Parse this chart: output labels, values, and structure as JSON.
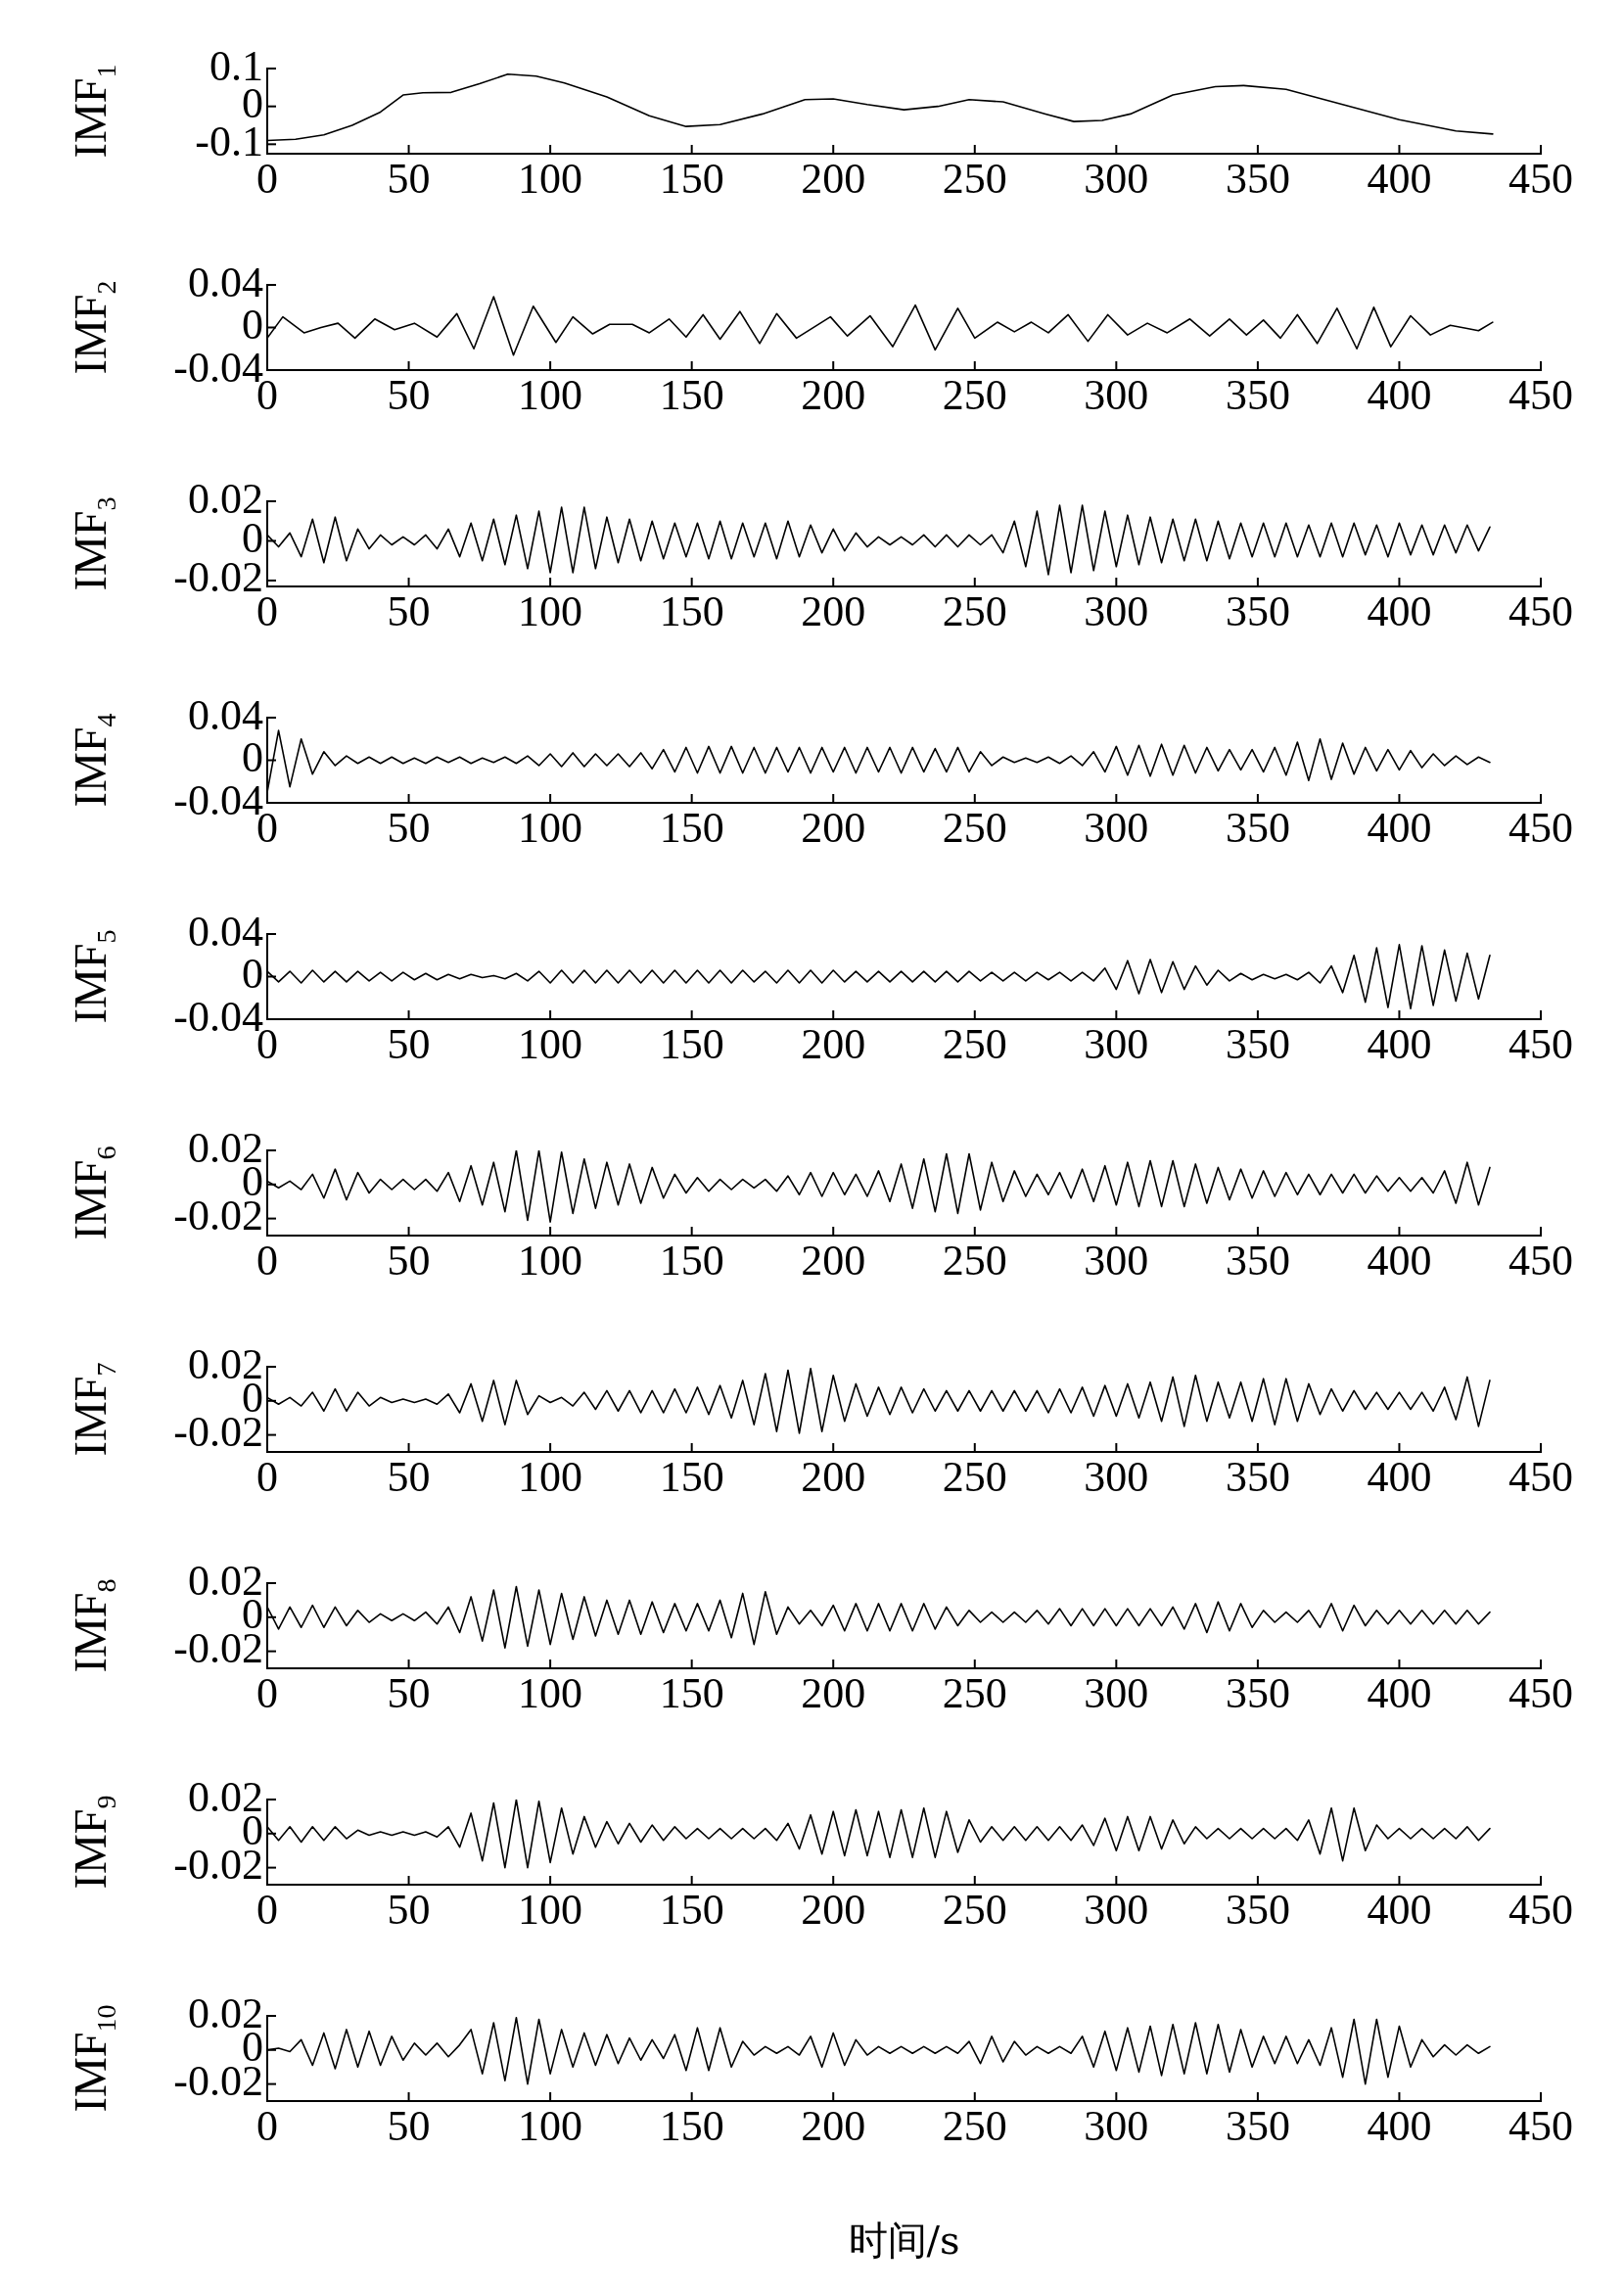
{
  "chart_data": [
    {
      "type": "line",
      "ylabel": "IMF$_{1}$",
      "color": "#000000",
      "marker": "none",
      "line_style": "solid",
      "xlim": [
        0,
        450
      ],
      "xticks": [
        0,
        50,
        100,
        150,
        200,
        250,
        300,
        350,
        400,
        450
      ],
      "ylim": [
        -0.125,
        0.1
      ],
      "yticks": [
        -0.1,
        0,
        0.1
      ],
      "x": [
        0,
        10,
        20,
        30,
        40,
        48,
        55,
        65,
        75,
        85,
        95,
        105,
        120,
        135,
        148,
        160,
        175,
        190,
        200,
        212,
        225,
        237,
        248,
        260,
        275,
        285,
        295,
        305,
        320,
        335,
        345,
        360,
        380,
        400,
        420,
        433
      ],
      "values": [
        -0.09,
        -0.087,
        -0.075,
        -0.05,
        -0.015,
        0.03,
        0.036,
        0.037,
        0.06,
        0.085,
        0.08,
        0.062,
        0.025,
        -0.025,
        -0.053,
        -0.048,
        -0.02,
        0.018,
        0.02,
        0.005,
        -0.009,
        0.0,
        0.018,
        0.012,
        -0.02,
        -0.04,
        -0.037,
        -0.02,
        0.03,
        0.052,
        0.055,
        0.045,
        0.005,
        -0.035,
        -0.065,
        -0.073
      ]
    },
    {
      "type": "line",
      "ylabel": "IMF$_{2}$",
      "color": "#000000",
      "marker": "none",
      "line_style": "solid",
      "xlim": [
        0,
        450
      ],
      "xticks": [
        0,
        50,
        100,
        150,
        200,
        250,
        300,
        350,
        400,
        450
      ],
      "ylim": [
        -0.04,
        0.04
      ],
      "yticks": [
        -0.04,
        0,
        0.04
      ],
      "x": [
        0,
        5.5,
        13,
        19,
        25,
        31,
        38,
        45,
        52,
        60,
        67,
        73,
        80,
        87,
        94,
        102,
        108,
        115,
        121,
        129,
        135,
        142,
        148,
        154,
        160,
        167,
        174,
        180,
        187,
        199,
        205,
        213,
        221,
        229,
        236,
        244,
        250,
        258,
        264,
        270,
        276,
        283,
        290,
        297,
        304,
        311,
        318,
        326,
        333,
        340,
        346,
        352,
        358,
        364,
        371,
        378,
        385,
        391,
        397,
        404,
        411,
        418,
        424,
        428,
        433
      ],
      "values": [
        -0.01,
        0.01,
        -0.005,
        0.0,
        0.004,
        -0.01,
        0.008,
        -0.002,
        0.004,
        -0.009,
        0.013,
        -0.02,
        0.029,
        -0.026,
        0.02,
        -0.014,
        0.01,
        -0.006,
        0.003,
        0.003,
        -0.005,
        0.008,
        -0.009,
        0.012,
        -0.011,
        0.015,
        -0.015,
        0.013,
        -0.01,
        0.01,
        -0.008,
        0.011,
        -0.018,
        0.021,
        -0.021,
        0.018,
        -0.01,
        0.005,
        -0.004,
        0.005,
        -0.005,
        0.012,
        -0.013,
        0.012,
        -0.007,
        0.004,
        -0.005,
        0.008,
        -0.008,
        0.008,
        -0.007,
        0.007,
        -0.01,
        0.012,
        -0.015,
        0.018,
        -0.02,
        0.019,
        -0.018,
        0.011,
        -0.007,
        0.002,
        -0.001,
        -0.003,
        0.005
      ]
    },
    {
      "type": "line",
      "ylabel": "IMF$_{3}$",
      "color": "#000000",
      "marker": "none",
      "line_style": "solid",
      "xlim": [
        0,
        450
      ],
      "xticks": [
        0,
        50,
        100,
        150,
        200,
        250,
        300,
        350,
        400,
        450
      ],
      "ylim": [
        -0.023,
        0.02
      ],
      "yticks": [
        -0.02,
        0,
        0.02
      ],
      "x": [
        0,
        4,
        8,
        12,
        16,
        20,
        24,
        28,
        32,
        36,
        40,
        44,
        48,
        52,
        56,
        60,
        64,
        68,
        72,
        76,
        80,
        84,
        88,
        92,
        96,
        100,
        104,
        108,
        112,
        116,
        120,
        124,
        128,
        132,
        136,
        140,
        144,
        148,
        152,
        156,
        160,
        164,
        168,
        172,
        176,
        180,
        184,
        188,
        192,
        196,
        200,
        204,
        208,
        212,
        216,
        220,
        224,
        228,
        232,
        236,
        240,
        244,
        248,
        252,
        256,
        260,
        264,
        268,
        272,
        276,
        280,
        284,
        288,
        292,
        296,
        300,
        304,
        308,
        312,
        316,
        320,
        324,
        328,
        332,
        336,
        340,
        344,
        348,
        352,
        356,
        360,
        364,
        368,
        372,
        376,
        380,
        384,
        388,
        392,
        396,
        400,
        404,
        408,
        412,
        416,
        420,
        424,
        428,
        432
      ],
      "values": [
        0.003,
        -0.003,
        0.004,
        -0.008,
        0.011,
        -0.011,
        0.012,
        -0.01,
        0.006,
        -0.004,
        0.003,
        -0.002,
        0.002,
        -0.002,
        0.003,
        -0.004,
        0.006,
        -0.008,
        0.009,
        -0.01,
        0.011,
        -0.012,
        0.013,
        -0.014,
        0.015,
        -0.016,
        0.017,
        -0.016,
        0.017,
        -0.014,
        0.012,
        -0.011,
        0.011,
        -0.01,
        0.01,
        -0.009,
        0.009,
        -0.008,
        0.009,
        -0.009,
        0.01,
        -0.009,
        0.009,
        -0.008,
        0.009,
        -0.009,
        0.01,
        -0.008,
        0.008,
        -0.006,
        0.006,
        -0.005,
        0.004,
        -0.003,
        0.002,
        -0.002,
        0.002,
        -0.002,
        0.003,
        -0.003,
        0.003,
        -0.003,
        0.003,
        -0.002,
        0.003,
        -0.006,
        0.01,
        -0.013,
        0.015,
        -0.017,
        0.018,
        -0.016,
        0.018,
        -0.015,
        0.015,
        -0.013,
        0.013,
        -0.012,
        0.012,
        -0.011,
        0.011,
        -0.01,
        0.011,
        -0.01,
        0.01,
        -0.009,
        0.009,
        -0.008,
        0.009,
        -0.008,
        0.009,
        -0.008,
        0.008,
        -0.008,
        0.009,
        -0.008,
        0.009,
        -0.007,
        0.008,
        -0.008,
        0.009,
        -0.007,
        0.008,
        -0.007,
        0.008,
        -0.006,
        0.008,
        -0.005,
        0.007
      ]
    },
    {
      "type": "line",
      "ylabel": "IMF$_{4}$",
      "color": "#000000",
      "marker": "none",
      "line_style": "solid",
      "xlim": [
        0,
        450
      ],
      "xticks": [
        0,
        50,
        100,
        150,
        200,
        250,
        300,
        350,
        400,
        450
      ],
      "ylim": [
        -0.04,
        0.04
      ],
      "yticks": [
        -0.04,
        0,
        0.04
      ],
      "x": [
        0,
        4,
        8,
        12,
        16,
        20,
        24,
        28,
        32,
        36,
        40,
        44,
        48,
        52,
        56,
        60,
        64,
        68,
        72,
        76,
        80,
        84,
        88,
        92,
        96,
        100,
        104,
        108,
        112,
        116,
        120,
        124,
        128,
        132,
        136,
        140,
        144,
        148,
        152,
        156,
        160,
        164,
        168,
        172,
        176,
        180,
        184,
        188,
        192,
        196,
        200,
        204,
        208,
        212,
        216,
        220,
        224,
        228,
        232,
        236,
        240,
        244,
        248,
        252,
        256,
        260,
        264,
        268,
        272,
        276,
        280,
        284,
        288,
        292,
        296,
        300,
        304,
        308,
        312,
        316,
        320,
        324,
        328,
        332,
        336,
        340,
        344,
        348,
        352,
        356,
        360,
        364,
        368,
        372,
        376,
        380,
        384,
        388,
        392,
        396,
        400,
        404,
        408,
        412,
        416,
        420,
        424,
        428,
        432
      ],
      "values": [
        -0.03,
        0.028,
        -0.025,
        0.02,
        -0.013,
        0.008,
        -0.005,
        0.004,
        -0.003,
        0.003,
        -0.003,
        0.003,
        -0.003,
        0.002,
        -0.003,
        0.003,
        -0.002,
        0.003,
        -0.003,
        0.002,
        -0.002,
        0.003,
        -0.003,
        0.004,
        -0.005,
        0.006,
        -0.006,
        0.007,
        -0.006,
        0.006,
        -0.005,
        0.006,
        -0.006,
        0.007,
        -0.008,
        0.01,
        -0.011,
        0.012,
        -0.012,
        0.013,
        -0.012,
        0.013,
        -0.012,
        0.012,
        -0.012,
        0.012,
        -0.011,
        0.012,
        -0.012,
        0.012,
        -0.011,
        0.012,
        -0.012,
        0.012,
        -0.011,
        0.012,
        -0.012,
        0.012,
        -0.011,
        0.011,
        -0.011,
        0.012,
        -0.011,
        0.008,
        -0.005,
        0.003,
        -0.002,
        0.002,
        -0.002,
        0.003,
        -0.003,
        0.004,
        -0.005,
        0.008,
        -0.011,
        0.013,
        -0.014,
        0.014,
        -0.015,
        0.015,
        -0.014,
        0.014,
        -0.012,
        0.012,
        -0.01,
        0.01,
        -0.009,
        0.01,
        -0.011,
        0.012,
        -0.014,
        0.017,
        -0.019,
        0.02,
        -0.018,
        0.016,
        -0.013,
        0.012,
        -0.01,
        0.01,
        -0.009,
        0.009,
        -0.007,
        0.006,
        -0.005,
        0.004,
        -0.004,
        0.003,
        -0.002
      ]
    },
    {
      "type": "line",
      "ylabel": "IMF$_{5}$",
      "color": "#000000",
      "marker": "none",
      "line_style": "solid",
      "xlim": [
        0,
        450
      ],
      "xticks": [
        0,
        50,
        100,
        150,
        200,
        250,
        300,
        350,
        400,
        450
      ],
      "ylim": [
        -0.04,
        0.04
      ],
      "yticks": [
        -0.04,
        0,
        0.04
      ],
      "x": [
        0,
        4,
        8,
        12,
        16,
        20,
        24,
        28,
        32,
        36,
        40,
        44,
        48,
        52,
        56,
        60,
        64,
        68,
        72,
        76,
        80,
        84,
        88,
        92,
        96,
        100,
        104,
        108,
        112,
        116,
        120,
        124,
        128,
        132,
        136,
        140,
        144,
        148,
        152,
        156,
        160,
        164,
        168,
        172,
        176,
        180,
        184,
        188,
        192,
        196,
        200,
        204,
        208,
        212,
        216,
        220,
        224,
        228,
        232,
        236,
        240,
        244,
        248,
        252,
        256,
        260,
        264,
        268,
        272,
        276,
        280,
        284,
        288,
        292,
        296,
        300,
        304,
        308,
        312,
        316,
        320,
        324,
        328,
        332,
        336,
        340,
        344,
        348,
        352,
        356,
        360,
        364,
        368,
        372,
        376,
        380,
        384,
        388,
        392,
        396,
        400,
        404,
        408,
        412,
        416,
        420,
        424,
        428,
        432
      ],
      "values": [
        0.005,
        -0.005,
        0.005,
        -0.006,
        0.006,
        -0.005,
        0.005,
        -0.005,
        0.005,
        -0.004,
        0.004,
        -0.004,
        0.004,
        -0.003,
        0.003,
        -0.003,
        0.002,
        -0.002,
        0.002,
        -0.001,
        0.001,
        -0.002,
        0.003,
        -0.004,
        0.005,
        -0.006,
        0.006,
        -0.006,
        0.006,
        -0.006,
        0.006,
        -0.006,
        0.006,
        -0.006,
        0.006,
        -0.006,
        0.006,
        -0.006,
        0.006,
        -0.006,
        0.006,
        -0.006,
        0.006,
        -0.005,
        0.005,
        -0.006,
        0.006,
        -0.006,
        0.006,
        -0.006,
        0.006,
        -0.005,
        0.005,
        -0.005,
        0.005,
        -0.005,
        0.005,
        -0.005,
        0.005,
        -0.005,
        0.005,
        -0.005,
        0.005,
        -0.004,
        0.004,
        -0.004,
        0.004,
        -0.004,
        0.004,
        -0.003,
        0.004,
        -0.004,
        0.004,
        -0.004,
        0.008,
        -0.012,
        0.015,
        -0.016,
        0.016,
        -0.015,
        0.014,
        -0.012,
        0.01,
        -0.008,
        0.006,
        -0.004,
        0.003,
        -0.003,
        0.002,
        -0.002,
        0.002,
        -0.003,
        0.004,
        -0.006,
        0.01,
        -0.015,
        0.02,
        -0.024,
        0.027,
        -0.029,
        0.03,
        -0.03,
        0.029,
        -0.027,
        0.025,
        -0.023,
        0.022,
        -0.021,
        0.02
      ]
    },
    {
      "type": "line",
      "ylabel": "IMF$_{6}$",
      "color": "#000000",
      "marker": "none",
      "line_style": "solid",
      "xlim": [
        0,
        450
      ],
      "xticks": [
        0,
        50,
        100,
        150,
        200,
        250,
        300,
        350,
        400,
        450
      ],
      "ylim": [
        -0.03,
        0.02
      ],
      "yticks": [
        -0.02,
        0,
        0.02
      ],
      "x": [
        0,
        4,
        8,
        12,
        16,
        20,
        24,
        28,
        32,
        36,
        40,
        44,
        48,
        52,
        56,
        60,
        64,
        68,
        72,
        76,
        80,
        84,
        88,
        92,
        96,
        100,
        104,
        108,
        112,
        116,
        120,
        124,
        128,
        132,
        136,
        140,
        144,
        148,
        152,
        156,
        160,
        164,
        168,
        172,
        176,
        180,
        184,
        188,
        192,
        196,
        200,
        204,
        208,
        212,
        216,
        220,
        224,
        228,
        232,
        236,
        240,
        244,
        248,
        252,
        256,
        260,
        264,
        268,
        272,
        276,
        280,
        284,
        288,
        292,
        296,
        300,
        304,
        308,
        312,
        316,
        320,
        324,
        328,
        332,
        336,
        340,
        344,
        348,
        352,
        356,
        360,
        364,
        368,
        372,
        376,
        380,
        384,
        388,
        392,
        396,
        400,
        404,
        408,
        412,
        416,
        420,
        424,
        428,
        432
      ],
      "values": [
        0.002,
        -0.002,
        0.002,
        -0.003,
        0.006,
        -0.008,
        0.009,
        -0.009,
        0.007,
        -0.005,
        0.003,
        -0.003,
        0.003,
        -0.003,
        0.003,
        -0.004,
        0.007,
        -0.01,
        0.011,
        -0.012,
        0.013,
        -0.016,
        0.02,
        -0.021,
        0.02,
        -0.022,
        0.019,
        -0.017,
        0.015,
        -0.014,
        0.013,
        -0.012,
        0.012,
        -0.011,
        0.01,
        -0.008,
        0.006,
        -0.005,
        0.004,
        -0.004,
        0.003,
        -0.003,
        0.003,
        -0.002,
        0.003,
        -0.004,
        0.005,
        -0.006,
        0.007,
        -0.007,
        0.007,
        -0.006,
        0.006,
        -0.007,
        0.008,
        -0.01,
        0.012,
        -0.014,
        0.015,
        -0.016,
        0.018,
        -0.017,
        0.018,
        -0.015,
        0.013,
        -0.01,
        0.008,
        -0.007,
        0.006,
        -0.006,
        0.007,
        -0.008,
        0.009,
        -0.01,
        0.011,
        -0.012,
        0.013,
        -0.013,
        0.014,
        -0.013,
        0.014,
        -0.013,
        0.012,
        -0.011,
        0.01,
        -0.009,
        0.009,
        -0.008,
        0.008,
        -0.007,
        0.007,
        -0.006,
        0.006,
        -0.006,
        0.006,
        -0.005,
        0.006,
        -0.005,
        0.005,
        -0.004,
        0.004,
        -0.004,
        0.004,
        -0.005,
        0.008,
        -0.011,
        0.013,
        -0.012,
        0.01
      ]
    },
    {
      "type": "line",
      "ylabel": "IMF$_{7}$",
      "color": "#000000",
      "marker": "none",
      "line_style": "solid",
      "xlim": [
        0,
        450
      ],
      "xticks": [
        0,
        50,
        100,
        150,
        200,
        250,
        300,
        350,
        400,
        450
      ],
      "ylim": [
        -0.03,
        0.02
      ],
      "yticks": [
        -0.02,
        0,
        0.02
      ],
      "x": [
        0,
        4,
        8,
        12,
        16,
        20,
        24,
        28,
        32,
        36,
        40,
        44,
        48,
        52,
        56,
        60,
        64,
        68,
        72,
        76,
        80,
        84,
        88,
        92,
        96,
        100,
        104,
        108,
        112,
        116,
        120,
        124,
        128,
        132,
        136,
        140,
        144,
        148,
        152,
        156,
        160,
        164,
        168,
        172,
        176,
        180,
        184,
        188,
        192,
        196,
        200,
        204,
        208,
        212,
        216,
        220,
        224,
        228,
        232,
        236,
        240,
        244,
        248,
        252,
        256,
        260,
        264,
        268,
        272,
        276,
        280,
        284,
        288,
        292,
        296,
        300,
        304,
        308,
        312,
        316,
        320,
        324,
        328,
        332,
        336,
        340,
        344,
        348,
        352,
        356,
        360,
        364,
        368,
        372,
        376,
        380,
        384,
        388,
        392,
        396,
        400,
        404,
        408,
        412,
        416,
        420,
        424,
        428,
        432
      ],
      "values": [
        0.002,
        -0.002,
        0.002,
        -0.003,
        0.005,
        -0.006,
        0.007,
        -0.006,
        0.005,
        -0.003,
        0.002,
        -0.001,
        0.001,
        -0.001,
        0.001,
        -0.002,
        0.004,
        -0.007,
        0.01,
        -0.012,
        0.012,
        -0.014,
        0.012,
        -0.008,
        0.003,
        -0.001,
        0.002,
        -0.003,
        0.005,
        -0.005,
        0.006,
        -0.006,
        0.006,
        -0.007,
        0.006,
        -0.007,
        0.007,
        -0.007,
        0.008,
        -0.008,
        0.009,
        -0.01,
        0.012,
        -0.014,
        0.016,
        -0.018,
        0.018,
        -0.019,
        0.019,
        -0.018,
        0.015,
        -0.012,
        0.01,
        -0.009,
        0.008,
        -0.008,
        0.008,
        -0.007,
        0.007,
        -0.006,
        0.006,
        -0.006,
        0.006,
        -0.006,
        0.006,
        -0.006,
        0.006,
        -0.006,
        0.006,
        -0.007,
        0.007,
        -0.007,
        0.008,
        -0.009,
        0.009,
        -0.009,
        0.01,
        -0.01,
        0.011,
        -0.012,
        0.014,
        -0.015,
        0.015,
        -0.012,
        0.011,
        -0.01,
        0.011,
        -0.012,
        0.013,
        -0.014,
        0.013,
        -0.012,
        0.01,
        -0.008,
        0.007,
        -0.006,
        0.006,
        -0.005,
        0.005,
        -0.005,
        0.005,
        -0.005,
        0.005,
        -0.006,
        0.008,
        -0.011,
        0.014,
        -0.015,
        0.012
      ]
    },
    {
      "type": "line",
      "ylabel": "IMF$_{8}$",
      "color": "#000000",
      "marker": "none",
      "line_style": "solid",
      "xlim": [
        0,
        450
      ],
      "xticks": [
        0,
        50,
        100,
        150,
        200,
        250,
        300,
        350,
        400,
        450
      ],
      "ylim": [
        -0.03,
        0.02
      ],
      "yticks": [
        -0.02,
        0,
        0.02
      ],
      "x": [
        0,
        4,
        8,
        12,
        16,
        20,
        24,
        28,
        32,
        36,
        40,
        44,
        48,
        52,
        56,
        60,
        64,
        68,
        72,
        76,
        80,
        84,
        88,
        92,
        96,
        100,
        104,
        108,
        112,
        116,
        120,
        124,
        128,
        132,
        136,
        140,
        144,
        148,
        152,
        156,
        160,
        164,
        168,
        172,
        176,
        180,
        184,
        188,
        192,
        196,
        200,
        204,
        208,
        212,
        216,
        220,
        224,
        228,
        232,
        236,
        240,
        244,
        248,
        252,
        256,
        260,
        264,
        268,
        272,
        276,
        280,
        284,
        288,
        292,
        296,
        300,
        304,
        308,
        312,
        316,
        320,
        324,
        328,
        332,
        336,
        340,
        344,
        348,
        352,
        356,
        360,
        364,
        368,
        372,
        376,
        380,
        384,
        388,
        392,
        396,
        400,
        404,
        408,
        412,
        416,
        420,
        424,
        428,
        432
      ],
      "values": [
        0.006,
        -0.007,
        0.006,
        -0.006,
        0.007,
        -0.006,
        0.006,
        -0.005,
        0.004,
        -0.003,
        0.002,
        -0.002,
        0.002,
        -0.002,
        0.003,
        -0.004,
        0.006,
        -0.009,
        0.012,
        -0.014,
        0.016,
        -0.018,
        0.018,
        -0.017,
        0.016,
        -0.016,
        0.014,
        -0.013,
        0.012,
        -0.011,
        0.01,
        -0.01,
        0.01,
        -0.01,
        0.009,
        -0.009,
        0.008,
        -0.008,
        0.008,
        -0.008,
        0.01,
        -0.012,
        0.014,
        -0.016,
        0.015,
        -0.01,
        0.006,
        -0.004,
        0.004,
        -0.005,
        0.007,
        -0.008,
        0.008,
        -0.008,
        0.008,
        -0.008,
        0.008,
        -0.008,
        0.008,
        -0.007,
        0.006,
        -0.005,
        0.004,
        -0.003,
        0.003,
        -0.003,
        0.003,
        -0.003,
        0.004,
        -0.004,
        0.005,
        -0.005,
        0.005,
        -0.005,
        0.005,
        -0.005,
        0.005,
        -0.005,
        0.005,
        -0.005,
        0.006,
        -0.007,
        0.008,
        -0.009,
        0.009,
        -0.008,
        0.008,
        -0.006,
        0.004,
        -0.003,
        0.003,
        -0.003,
        0.004,
        -0.006,
        0.008,
        -0.008,
        0.007,
        -0.005,
        0.004,
        -0.004,
        0.004,
        -0.004,
        0.004,
        -0.004,
        0.004,
        -0.004,
        0.004,
        -0.004,
        0.003
      ]
    },
    {
      "type": "line",
      "ylabel": "IMF$_{9}$",
      "color": "#000000",
      "marker": "none",
      "line_style": "solid",
      "xlim": [
        0,
        450
      ],
      "xticks": [
        0,
        50,
        100,
        150,
        200,
        250,
        300,
        350,
        400,
        450
      ],
      "ylim": [
        -0.03,
        0.02
      ],
      "yticks": [
        -0.02,
        0,
        0.02
      ],
      "x": [
        0,
        4,
        8,
        12,
        16,
        20,
        24,
        28,
        32,
        36,
        40,
        44,
        48,
        52,
        56,
        60,
        64,
        68,
        72,
        76,
        80,
        84,
        88,
        92,
        96,
        100,
        104,
        108,
        112,
        116,
        120,
        124,
        128,
        132,
        136,
        140,
        144,
        148,
        152,
        156,
        160,
        164,
        168,
        172,
        176,
        180,
        184,
        188,
        192,
        196,
        200,
        204,
        208,
        212,
        216,
        220,
        224,
        228,
        232,
        236,
        240,
        244,
        248,
        252,
        256,
        260,
        264,
        268,
        272,
        276,
        280,
        284,
        288,
        292,
        296,
        300,
        304,
        308,
        312,
        316,
        320,
        324,
        328,
        332,
        336,
        340,
        344,
        348,
        352,
        356,
        360,
        364,
        368,
        372,
        376,
        380,
        384,
        388,
        392,
        396,
        400,
        404,
        408,
        412,
        416,
        420,
        424,
        428,
        432
      ],
      "values": [
        0.004,
        -0.004,
        0.004,
        -0.005,
        0.004,
        -0.004,
        0.004,
        -0.003,
        0.002,
        -0.001,
        0.001,
        -0.001,
        0.001,
        -0.001,
        0.001,
        -0.002,
        0.004,
        -0.008,
        0.012,
        -0.016,
        0.018,
        -0.02,
        0.02,
        -0.02,
        0.019,
        -0.017,
        0.015,
        -0.012,
        0.01,
        -0.008,
        0.007,
        -0.006,
        0.006,
        -0.005,
        0.005,
        -0.004,
        0.004,
        -0.003,
        0.003,
        -0.003,
        0.003,
        -0.003,
        0.003,
        -0.003,
        0.003,
        -0.004,
        0.006,
        -0.009,
        0.011,
        -0.012,
        0.013,
        -0.013,
        0.014,
        -0.013,
        0.013,
        -0.014,
        0.014,
        -0.014,
        0.015,
        -0.014,
        0.013,
        -0.011,
        0.008,
        -0.005,
        0.004,
        -0.004,
        0.004,
        -0.004,
        0.004,
        -0.004,
        0.004,
        -0.004,
        0.005,
        -0.007,
        0.009,
        -0.01,
        0.01,
        -0.01,
        0.01,
        -0.009,
        0.008,
        -0.006,
        0.004,
        -0.003,
        0.003,
        -0.003,
        0.003,
        -0.003,
        0.003,
        -0.003,
        0.003,
        -0.004,
        0.008,
        -0.012,
        0.015,
        -0.016,
        0.015,
        -0.01,
        0.005,
        -0.003,
        0.003,
        -0.003,
        0.003,
        -0.003,
        0.003,
        -0.003,
        0.004,
        -0.004,
        0.003
      ]
    },
    {
      "type": "line",
      "ylabel": "IMF$_{10}$",
      "xlabel": "时间/s",
      "color": "#000000",
      "marker": "none",
      "line_style": "solid",
      "xlim": [
        0,
        450
      ],
      "xticks": [
        0,
        50,
        100,
        150,
        200,
        250,
        300,
        350,
        400,
        450
      ],
      "ylim": [
        -0.03,
        0.02
      ],
      "yticks": [
        -0.02,
        0,
        0.02
      ],
      "x": [
        0,
        4,
        8,
        12,
        16,
        20,
        24,
        28,
        32,
        36,
        40,
        44,
        48,
        52,
        56,
        60,
        64,
        68,
        72,
        76,
        80,
        84,
        88,
        92,
        96,
        100,
        104,
        108,
        112,
        116,
        120,
        124,
        128,
        132,
        136,
        140,
        144,
        148,
        152,
        156,
        160,
        164,
        168,
        172,
        176,
        180,
        184,
        188,
        192,
        196,
        200,
        204,
        208,
        212,
        216,
        220,
        224,
        228,
        232,
        236,
        240,
        244,
        248,
        252,
        256,
        260,
        264,
        268,
        272,
        276,
        280,
        284,
        288,
        292,
        296,
        300,
        304,
        308,
        312,
        316,
        320,
        324,
        328,
        332,
        336,
        340,
        344,
        348,
        352,
        356,
        360,
        364,
        368,
        372,
        376,
        380,
        384,
        388,
        392,
        396,
        400,
        404,
        408,
        412,
        416,
        420,
        424,
        428,
        432
      ],
      "values": [
        0.0,
        0.001,
        -0.001,
        0.006,
        -0.009,
        0.01,
        -0.011,
        0.012,
        -0.01,
        0.011,
        -0.009,
        0.008,
        -0.006,
        0.004,
        -0.003,
        0.004,
        -0.004,
        0.003,
        0.012,
        -0.014,
        0.016,
        -0.018,
        0.019,
        -0.02,
        0.018,
        -0.014,
        0.012,
        -0.01,
        0.01,
        -0.009,
        0.009,
        -0.008,
        0.007,
        -0.006,
        0.006,
        -0.005,
        0.009,
        -0.012,
        0.013,
        -0.012,
        0.013,
        -0.01,
        0.005,
        -0.003,
        0.002,
        -0.002,
        0.002,
        -0.003,
        0.008,
        -0.01,
        0.01,
        -0.009,
        0.006,
        -0.003,
        0.002,
        -0.002,
        0.002,
        -0.002,
        0.002,
        -0.002,
        0.002,
        -0.002,
        0.005,
        -0.008,
        0.008,
        -0.007,
        0.005,
        -0.003,
        0.002,
        -0.002,
        0.002,
        -0.002,
        0.008,
        -0.01,
        0.011,
        -0.012,
        0.013,
        -0.013,
        0.014,
        -0.015,
        0.015,
        -0.014,
        0.016,
        -0.014,
        0.015,
        -0.013,
        0.012,
        -0.01,
        0.008,
        -0.008,
        0.008,
        -0.008,
        0.006,
        -0.009,
        0.013,
        -0.016,
        0.018,
        -0.02,
        0.018,
        -0.016,
        0.014,
        -0.01,
        0.006,
        -0.004,
        0.003,
        -0.003,
        0.003,
        -0.002,
        0.002
      ]
    }
  ]
}
